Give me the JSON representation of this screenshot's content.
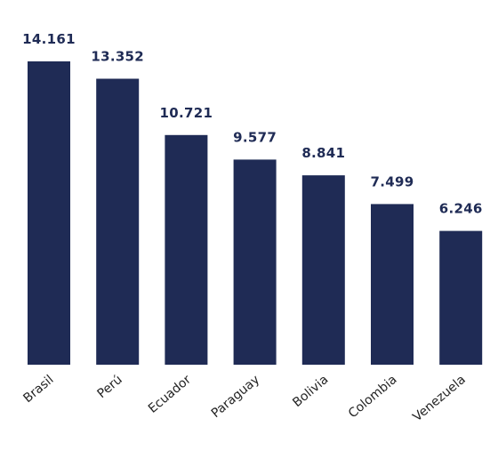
{
  "chart_data": {
    "type": "bar",
    "categories": [
      "Brasil",
      "Perú",
      "Ecuador",
      "Paraguay",
      "Bolivia",
      "Colombia",
      "Venezuela"
    ],
    "values": [
      14.161,
      13.352,
      10.721,
      9.577,
      8.841,
      7.499,
      6.246
    ],
    "value_labels": [
      "14.161",
      "13.352",
      "10.721",
      "9.577",
      "8.841",
      "7.499",
      "6.246"
    ],
    "title": "",
    "xlabel": "",
    "ylabel": "",
    "ylim": [
      0,
      14.161
    ],
    "grid": false,
    "legend": "none",
    "bar_color": "#1f2b55",
    "label_color": "#1f2b55",
    "tick_color": "#222222"
  }
}
